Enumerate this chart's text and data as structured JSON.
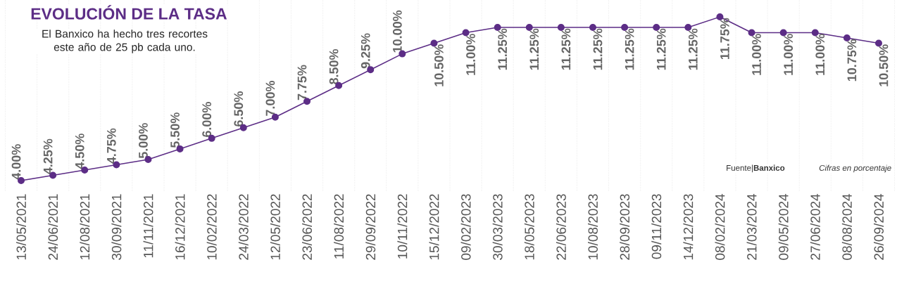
{
  "chart_data": {
    "type": "line",
    "title": "EVOLUCIÓN DE LA TASA",
    "subtitle": "El Banxico ha hecho tres recortes este año de 25 pb cada uno.",
    "annotations": [
      "Fuente|**Banxico**",
      "Cifras en porcentaje"
    ],
    "categories": [
      "13/05/2021",
      "24/06/2021",
      "12/08/2021",
      "30/09/2021",
      "11/11/2021",
      "16/12/2021",
      "10/02/2022",
      "24/03/2022",
      "12/05/2022",
      "23/06/2022",
      "11/08/2022",
      "29/09/2022",
      "10/11/2022",
      "15/12/2022",
      "09/02/2023",
      "30/03/2023",
      "18/05/2023",
      "22/06/2023",
      "10/08/2023",
      "28/09/2023",
      "09/11/2023",
      "14/12/2023",
      "08/02/2024",
      "21/03/2024",
      "09/05/2024",
      "27/06/2024",
      "08/08/2024",
      "26/09/2024"
    ],
    "values": [
      4.0,
      4.25,
      4.5,
      4.75,
      5.0,
      5.5,
      6.0,
      6.5,
      7.0,
      7.75,
      8.5,
      9.25,
      10.0,
      10.5,
      11.0,
      11.25,
      11.25,
      11.25,
      11.25,
      11.25,
      11.25,
      11.25,
      11.75,
      11.0,
      11.0,
      11.0,
      10.75,
      10.5
    ],
    "value_labels": [
      "4.00%",
      "4.25%",
      "4.50%",
      "4.75%",
      "5.00%",
      "5.50%",
      "6.00%",
      "6.50%",
      "7.00%",
      "7.75%",
      "8.50%",
      "9.25%",
      "10.00%",
      "10.50%",
      "11.00%",
      "11.25%",
      "11.25%",
      "11.25%",
      "11.25%",
      "11.25%",
      "11.25%",
      "11.25%",
      "11.75%",
      "11.00%",
      "11.00%",
      "11.00%",
      "10.75%",
      "10.50%"
    ],
    "color": "#5c2d86",
    "marker": "circle",
    "grid": "x"
  }
}
